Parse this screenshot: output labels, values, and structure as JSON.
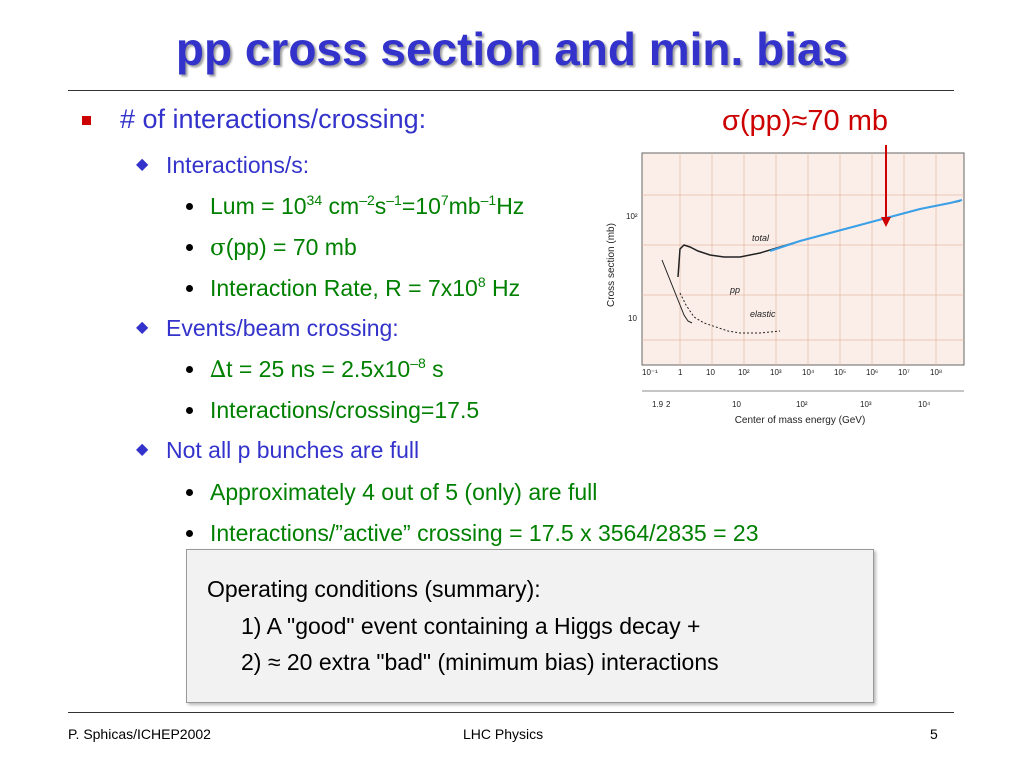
{
  "title": "pp cross section and min. bias",
  "bullets": {
    "main": "# of interactions/crossing:",
    "sigma_pp_callout": "σ(pp)≈70 mb",
    "interactions_per_s": "Interactions/s:",
    "lum_prefix": "Lum = 10",
    "lum_exp1": "34",
    "lum_mid1": " cm",
    "lum_exp2": "–2",
    "lum_mid2": "s",
    "lum_exp3": "–1",
    "lum_mid3": "=10",
    "lum_exp4": "7",
    "lum_mid4": "mb",
    "lum_exp5": "–1",
    "lum_suffix": "Hz",
    "sigma_symbol": "σ",
    "sigma_rest": "(pp) = 70 mb",
    "rate_prefix": "Interaction Rate, R = 7x10",
    "rate_exp": "8",
    "rate_suffix": " Hz",
    "events_beam": "Events/beam crossing:",
    "delta_symbol": "∆",
    "dt_prefix": "t = 25 ns = 2.5x10",
    "dt_exp": "–8",
    "dt_suffix": " s",
    "interactions_crossing": "Interactions/crossing=17.5",
    "not_all": "Not all p bunches are full",
    "approx": "Approximately 4 out of 5 (only) are full",
    "active": "Interactions/”active” crossing = 17.5 x 3564/2835 = 23"
  },
  "plot": {
    "ylabel": "Cross section (mb)",
    "xlabel": "Center of mass energy (GeV)",
    "label_total": "total",
    "label_pp": "pp",
    "label_elastic": "elastic",
    "top_ticks": [
      "10⁻¹",
      "1",
      "10",
      "10²",
      "10³",
      "10⁴",
      "10⁵",
      "10⁶",
      "10⁷",
      "10⁸"
    ],
    "bottom_ticks": [
      "1.9",
      "2",
      "10",
      "10²",
      "10³",
      "10⁴"
    ],
    "y_ticks": [
      "10²",
      "10"
    ]
  },
  "summary": {
    "line1": "Operating conditions (summary):",
    "line2": "1)  A \"good\" event containing a  Higgs decay +",
    "line3": "2)  ≈ 20 extra \"bad\" (minimum bias) interactions"
  },
  "footer": {
    "left": "P. Sphicas/ICHEP2002",
    "center": "LHC Physics",
    "right": "5"
  },
  "colors": {
    "title": "#3333cc",
    "level1": "#3333cc",
    "level3": "#008000",
    "accent": "#cc0000"
  }
}
